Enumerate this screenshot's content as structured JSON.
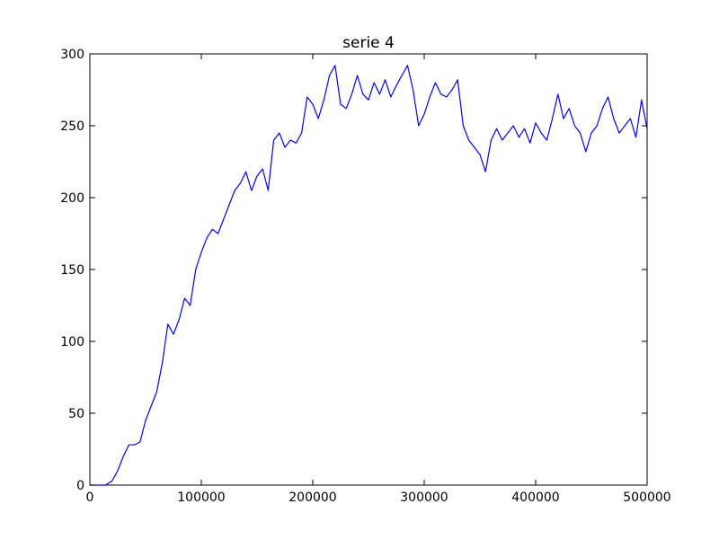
{
  "chart_data": {
    "type": "line",
    "title": "serie 4",
    "xlabel": "",
    "ylabel": "",
    "xlim": [
      0,
      500000
    ],
    "ylim": [
      0,
      300
    ],
    "xticks": [
      0,
      100000,
      200000,
      300000,
      400000,
      500000
    ],
    "xtick_labels": [
      "0",
      "100000",
      "200000",
      "300000",
      "400000",
      "500000"
    ],
    "yticks": [
      0,
      50,
      100,
      150,
      200,
      250,
      300
    ],
    "ytick_labels": [
      "0",
      "50",
      "100",
      "150",
      "200",
      "250",
      "300"
    ],
    "grid": false,
    "series": [
      {
        "color": "#0000ff",
        "x": [
          0,
          10000,
          14000,
          20000,
          25000,
          30000,
          35000,
          40000,
          45000,
          50000,
          55000,
          60000,
          65000,
          70000,
          75000,
          80000,
          85000,
          90000,
          95000,
          100000,
          105000,
          110000,
          115000,
          120000,
          125000,
          130000,
          135000,
          140000,
          145000,
          150000,
          155000,
          160000,
          165000,
          170000,
          175000,
          180000,
          185000,
          190000,
          195000,
          200000,
          205000,
          210000,
          215000,
          220000,
          225000,
          230000,
          235000,
          240000,
          245000,
          250000,
          255000,
          260000,
          265000,
          270000,
          275000,
          280000,
          285000,
          290000,
          295000,
          300000,
          305000,
          310000,
          315000,
          320000,
          325000,
          330000,
          335000,
          340000,
          345000,
          350000,
          355000,
          360000,
          365000,
          370000,
          375000,
          380000,
          385000,
          390000,
          395000,
          400000,
          405000,
          410000,
          415000,
          420000,
          425000,
          430000,
          435000,
          440000,
          445000,
          450000,
          455000,
          460000,
          465000,
          470000,
          475000,
          480000,
          485000,
          490000,
          495000,
          500000
        ],
        "y": [
          0,
          0,
          0,
          3,
          10,
          20,
          28,
          28,
          30,
          45,
          55,
          65,
          85,
          112,
          105,
          115,
          130,
          125,
          150,
          162,
          172,
          178,
          175,
          185,
          195,
          205,
          210,
          218,
          205,
          215,
          220,
          205,
          240,
          245,
          235,
          240,
          238,
          245,
          270,
          265,
          255,
          268,
          285,
          292,
          265,
          262,
          272,
          285,
          272,
          268,
          280,
          272,
          282,
          270,
          278,
          285,
          292,
          275,
          250,
          258,
          270,
          280,
          272,
          270,
          275,
          282,
          250,
          240,
          235,
          230,
          218,
          240,
          248,
          240,
          245,
          250,
          242,
          248,
          238,
          252,
          245,
          240,
          255,
          272,
          255,
          262,
          250,
          245,
          232,
          245,
          250,
          262,
          270,
          255,
          245,
          250,
          255,
          242,
          268,
          248
        ]
      }
    ]
  }
}
